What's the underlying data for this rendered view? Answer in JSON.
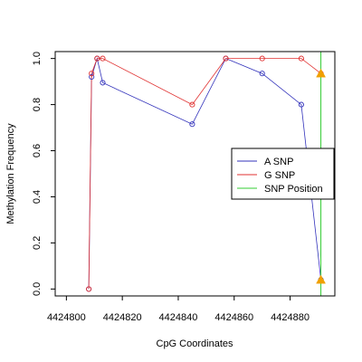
{
  "chart_data": {
    "type": "line",
    "title": "",
    "xlabel": "CpG Coordinates",
    "ylabel": "Methylation Frequency",
    "xlim": [
      4424796,
      4424896
    ],
    "ylim": [
      -0.03,
      1.03
    ],
    "x_ticks": [
      4424800,
      4424820,
      4424840,
      4424860,
      4424880
    ],
    "x_tick_labels": [
      "4424800",
      "4424820",
      "4424840",
      "4424860",
      "4424880"
    ],
    "y_ticks": [
      0.0,
      0.2,
      0.4,
      0.6,
      0.8,
      1.0
    ],
    "y_tick_labels": [
      "0.0",
      "0.2",
      "0.4",
      "0.6",
      "0.8",
      "1.0"
    ],
    "grid": false,
    "legend_position": "right",
    "series": [
      {
        "name": "A SNP",
        "color": "#3333bb",
        "x": [
          4424808,
          4424809,
          4424811,
          4424813,
          4424845,
          4424857,
          4424870,
          4424884,
          4424891
        ],
        "y": [
          0.0,
          0.92,
          1.0,
          0.895,
          0.715,
          1.0,
          0.935,
          0.8,
          0.04
        ]
      },
      {
        "name": "G SNP",
        "color": "#e03030",
        "x": [
          4424808,
          4424809,
          4424811,
          4424813,
          4424845,
          4424857,
          4424870,
          4424884,
          4424891
        ],
        "y": [
          0.0,
          0.935,
          1.0,
          1.0,
          0.8,
          1.0,
          1.0,
          1.0,
          0.935
        ]
      }
    ],
    "snp_position": {
      "name": "SNP Position",
      "color": "#33cc33",
      "x": 4424891
    },
    "snp_markers": [
      {
        "x": 4424891,
        "y": 0.935,
        "color": "#f0a000"
      },
      {
        "x": 4424891,
        "y": 0.04,
        "color": "#f0a000"
      }
    ]
  }
}
